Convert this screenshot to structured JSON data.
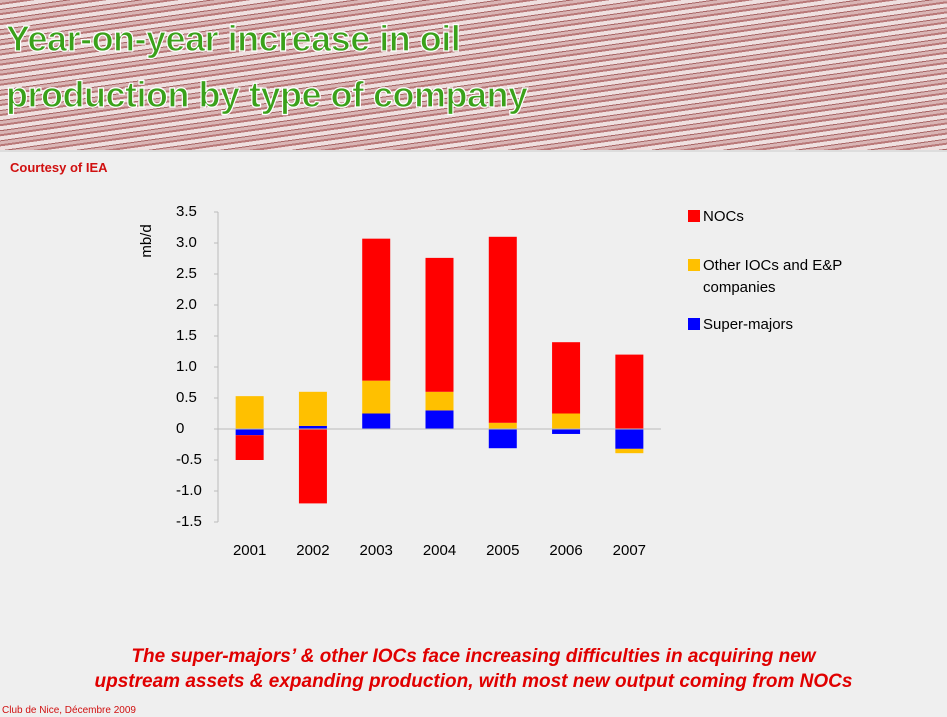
{
  "header": {
    "title_lines": [
      "Year-on-year increase in oil",
      "production by type of company"
    ]
  },
  "source": "Courtesy of IEA",
  "chart_data": {
    "type": "stacked-bar",
    "y_label": "mb/d",
    "categories": [
      "2001",
      "2002",
      "2003",
      "2004",
      "2005",
      "2006",
      "2007"
    ],
    "series": [
      {
        "name": "NOCs",
        "color": "#ff0000",
        "values": [
          -0.4,
          -1.2,
          2.29,
          2.16,
          3.0,
          1.15,
          1.2
        ]
      },
      {
        "name": "Other IOCs and E&P companies",
        "color": "#ffc000",
        "values": [
          0.53,
          0.55,
          0.53,
          0.3,
          0.1,
          0.25,
          -0.07
        ]
      },
      {
        "name": "Super-majors",
        "color": "#0000ff",
        "values": [
          -0.1,
          0.05,
          0.25,
          0.3,
          -0.31,
          -0.08,
          -0.32
        ]
      }
    ],
    "ylim": [
      -1.5,
      3.5
    ],
    "yticks": [
      -1.5,
      {
        "value": -1,
        "label": "-1.0"
      },
      -0.5,
      0,
      0.5,
      {
        "value": 1,
        "label": "1.0"
      },
      1.5,
      {
        "value": 2,
        "label": "2.0"
      },
      2.5,
      {
        "value": 3,
        "label": "3.0"
      },
      3.5
    ]
  },
  "caption_lines": [
    "The super-majors’ & other IOCs face increasing difficulties in acquiring new",
    "upstream assets & expanding production, with most new output coming from NOCs"
  ],
  "footer": "Club de Nice, Décembre 2009"
}
